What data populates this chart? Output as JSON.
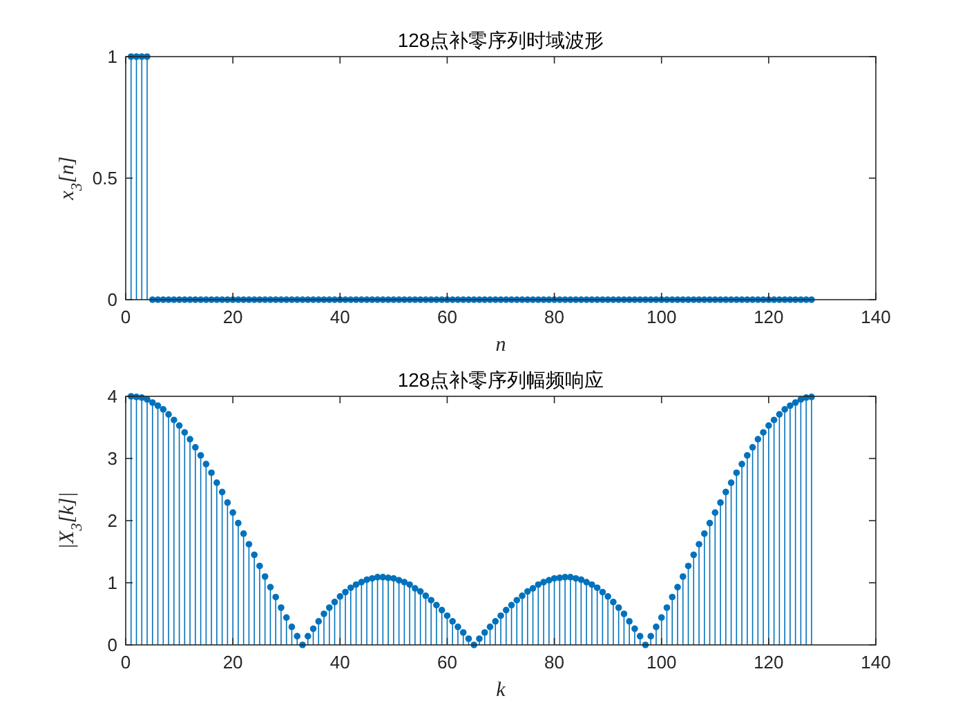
{
  "chart_data": [
    {
      "type": "lollipop",
      "title": "128点补零序列时域波形",
      "xlabel": "n",
      "ylabel": "x$_{3}$[n]",
      "color": "#0072bd",
      "marker": "circle",
      "xlim": [
        0,
        140
      ],
      "xticks": [
        0,
        20,
        40,
        60,
        80,
        100,
        120,
        140
      ],
      "ylim": [
        0,
        1
      ],
      "yticks": [
        0,
        0.5,
        1
      ],
      "x": [
        1,
        2,
        3,
        4,
        5,
        6,
        7,
        8,
        9,
        10,
        11,
        12,
        13,
        14,
        15,
        16,
        17,
        18,
        19,
        20,
        21,
        22,
        23,
        24,
        25,
        26,
        27,
        28,
        29,
        30,
        31,
        32,
        33,
        34,
        35,
        36,
        37,
        38,
        39,
        40,
        41,
        42,
        43,
        44,
        45,
        46,
        47,
        48,
        49,
        50,
        51,
        52,
        53,
        54,
        55,
        56,
        57,
        58,
        59,
        60,
        61,
        62,
        63,
        64,
        65,
        66,
        67,
        68,
        69,
        70,
        71,
        72,
        73,
        74,
        75,
        76,
        77,
        78,
        79,
        80,
        81,
        82,
        83,
        84,
        85,
        86,
        87,
        88,
        89,
        90,
        91,
        92,
        93,
        94,
        95,
        96,
        97,
        98,
        99,
        100,
        101,
        102,
        103,
        104,
        105,
        106,
        107,
        108,
        109,
        110,
        111,
        112,
        113,
        114,
        115,
        116,
        117,
        118,
        119,
        120,
        121,
        122,
        123,
        124,
        125,
        126,
        127,
        128
      ],
      "values": [
        1,
        1,
        1,
        1,
        0,
        0,
        0,
        0,
        0,
        0,
        0,
        0,
        0,
        0,
        0,
        0,
        0,
        0,
        0,
        0,
        0,
        0,
        0,
        0,
        0,
        0,
        0,
        0,
        0,
        0,
        0,
        0,
        0,
        0,
        0,
        0,
        0,
        0,
        0,
        0,
        0,
        0,
        0,
        0,
        0,
        0,
        0,
        0,
        0,
        0,
        0,
        0,
        0,
        0,
        0,
        0,
        0,
        0,
        0,
        0,
        0,
        0,
        0,
        0,
        0,
        0,
        0,
        0,
        0,
        0,
        0,
        0,
        0,
        0,
        0,
        0,
        0,
        0,
        0,
        0,
        0,
        0,
        0,
        0,
        0,
        0,
        0,
        0,
        0,
        0,
        0,
        0,
        0,
        0,
        0,
        0,
        0,
        0,
        0,
        0,
        0,
        0,
        0,
        0,
        0,
        0,
        0,
        0,
        0,
        0,
        0,
        0,
        0,
        0,
        0,
        0,
        0,
        0,
        0,
        0,
        0,
        0,
        0,
        0,
        0,
        0,
        0,
        0
      ]
    },
    {
      "type": "lollipop",
      "title": "128点补零序列幅频响应",
      "xlabel": "k",
      "ylabel": "|X$_{3}$[k]|",
      "color": "#0072bd",
      "marker": "circle",
      "xlim": [
        0,
        140
      ],
      "xticks": [
        0,
        20,
        40,
        60,
        80,
        100,
        120,
        140
      ],
      "ylim": [
        0,
        4
      ],
      "yticks": [
        0,
        1,
        2,
        3,
        4
      ],
      "x": [
        1,
        2,
        3,
        4,
        5,
        6,
        7,
        8,
        9,
        10,
        11,
        12,
        13,
        14,
        15,
        16,
        17,
        18,
        19,
        20,
        21,
        22,
        23,
        24,
        25,
        26,
        27,
        28,
        29,
        30,
        31,
        32,
        33,
        34,
        35,
        36,
        37,
        38,
        39,
        40,
        41,
        42,
        43,
        44,
        45,
        46,
        47,
        48,
        49,
        50,
        51,
        52,
        53,
        54,
        55,
        56,
        57,
        58,
        59,
        60,
        61,
        62,
        63,
        64,
        65,
        66,
        67,
        68,
        69,
        70,
        71,
        72,
        73,
        74,
        75,
        76,
        77,
        78,
        79,
        80,
        81,
        82,
        83,
        84,
        85,
        86,
        87,
        88,
        89,
        90,
        91,
        92,
        93,
        94,
        95,
        96,
        97,
        98,
        99,
        100,
        101,
        102,
        103,
        104,
        105,
        106,
        107,
        108,
        109,
        110,
        111,
        112,
        113,
        114,
        115,
        116,
        117,
        118,
        119,
        120,
        121,
        122,
        123,
        124,
        125,
        126,
        127,
        128
      ],
      "values": [
        4,
        3.99,
        3.98,
        3.95,
        3.9,
        3.85,
        3.79,
        3.71,
        3.62,
        3.53,
        3.42,
        3.31,
        3.18,
        3.05,
        2.91,
        2.77,
        2.61,
        2.46,
        2.29,
        2.13,
        1.96,
        1.79,
        1.62,
        1.45,
        1.27,
        1.1,
        0.93,
        0.77,
        0.6,
        0.44,
        0.29,
        0.14,
        0,
        0.14,
        0.26,
        0.38,
        0.5,
        0.6,
        0.69,
        0.78,
        0.85,
        0.92,
        0.97,
        1.01,
        1.05,
        1.07,
        1.09,
        1.09,
        1.08,
        1.07,
        1.04,
        1.01,
        0.97,
        0.91,
        0.86,
        0.79,
        0.72,
        0.64,
        0.56,
        0.47,
        0.38,
        0.29,
        0.2,
        0.1,
        0,
        0.1,
        0.2,
        0.29,
        0.38,
        0.47,
        0.56,
        0.64,
        0.72,
        0.79,
        0.86,
        0.91,
        0.97,
        1.01,
        1.04,
        1.07,
        1.08,
        1.09,
        1.09,
        1.07,
        1.05,
        1.01,
        0.97,
        0.92,
        0.85,
        0.78,
        0.69,
        0.6,
        0.5,
        0.38,
        0.26,
        0.14,
        0,
        0.14,
        0.29,
        0.44,
        0.6,
        0.77,
        0.93,
        1.1,
        1.27,
        1.45,
        1.62,
        1.79,
        1.96,
        2.13,
        2.29,
        2.46,
        2.61,
        2.77,
        2.91,
        3.05,
        3.18,
        3.31,
        3.42,
        3.53,
        3.62,
        3.71,
        3.79,
        3.85,
        3.9,
        3.95,
        3.98,
        3.99
      ]
    }
  ]
}
